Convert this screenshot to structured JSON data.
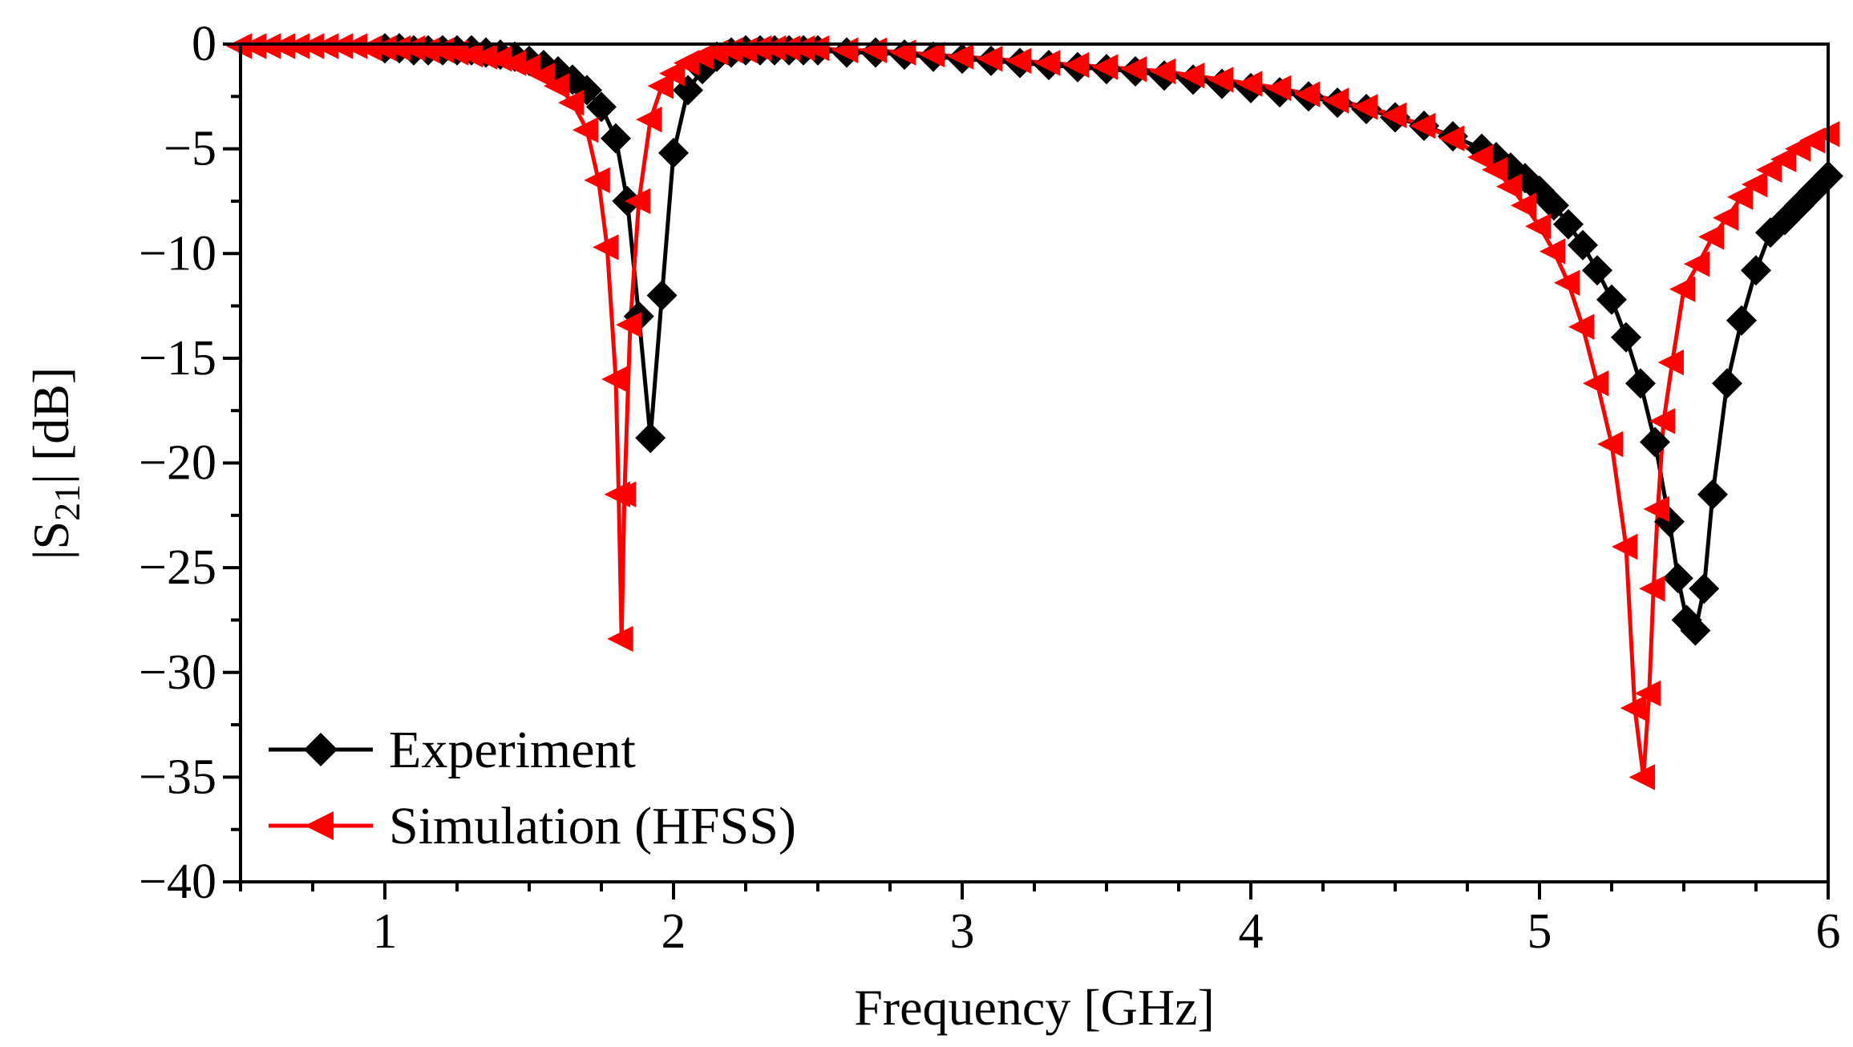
{
  "chart_data": {
    "type": "line",
    "title": "",
    "xlabel": "Frequency [GHz]",
    "ylabel_parts": {
      "prefix": "|S",
      "subscript": "21",
      "suffix": "| [dB]"
    },
    "xlim": [
      0.5,
      6
    ],
    "ylim": [
      -40,
      0
    ],
    "xticks": [
      1,
      2,
      3,
      4,
      5,
      6
    ],
    "xtick_labels": [
      "1",
      "2",
      "3",
      "4",
      "5",
      "6"
    ],
    "yticks": [
      0,
      -5,
      -10,
      -15,
      -20,
      -25,
      -30,
      -35,
      -40
    ],
    "ytick_labels": [
      "0",
      "−5",
      "−10",
      "−15",
      "−20",
      "−25",
      "−30",
      "−35",
      "−40"
    ],
    "legend_position": "bottom-left",
    "series": [
      {
        "name": "Experiment",
        "color": "#000000",
        "marker": "diamond",
        "x": [
          1.0,
          1.05,
          1.1,
          1.15,
          1.2,
          1.25,
          1.3,
          1.35,
          1.4,
          1.45,
          1.5,
          1.55,
          1.6,
          1.65,
          1.7,
          1.75,
          1.8,
          1.84,
          1.88,
          1.92,
          1.96,
          2.0,
          2.05,
          2.1,
          2.15,
          2.2,
          2.25,
          2.3,
          2.35,
          2.4,
          2.45,
          2.5,
          2.6,
          2.7,
          2.8,
          2.9,
          3.0,
          3.1,
          3.2,
          3.3,
          3.4,
          3.5,
          3.6,
          3.7,
          3.8,
          3.9,
          4.0,
          4.1,
          4.2,
          4.3,
          4.4,
          4.5,
          4.6,
          4.7,
          4.8,
          4.85,
          4.9,
          4.95,
          5.0,
          5.05,
          5.1,
          5.15,
          5.2,
          5.25,
          5.3,
          5.35,
          5.4,
          5.45,
          5.48,
          5.51,
          5.54,
          5.57,
          5.6,
          5.65,
          5.7,
          5.75,
          5.8,
          5.85,
          5.9,
          5.95,
          6.0
        ],
        "y": [
          -0.2,
          -0.2,
          -0.3,
          -0.3,
          -0.3,
          -0.3,
          -0.3,
          -0.4,
          -0.5,
          -0.6,
          -0.8,
          -1.0,
          -1.3,
          -1.7,
          -2.2,
          -3.0,
          -4.5,
          -7.5,
          -13.0,
          -18.8,
          -12.0,
          -5.2,
          -2.2,
          -1.2,
          -0.6,
          -0.4,
          -0.3,
          -0.3,
          -0.3,
          -0.3,
          -0.3,
          -0.3,
          -0.4,
          -0.4,
          -0.5,
          -0.6,
          -0.7,
          -0.8,
          -0.9,
          -1.0,
          -1.1,
          -1.2,
          -1.3,
          -1.5,
          -1.7,
          -1.9,
          -2.1,
          -2.3,
          -2.5,
          -2.8,
          -3.1,
          -3.5,
          -3.9,
          -4.4,
          -5.0,
          -5.4,
          -5.9,
          -6.4,
          -7.0,
          -7.7,
          -8.6,
          -9.6,
          -10.8,
          -12.2,
          -14.0,
          -16.2,
          -19.0,
          -22.8,
          -25.5,
          -27.5,
          -28.0,
          -26.0,
          -21.5,
          -16.2,
          -13.2,
          -10.8,
          -9.0,
          -8.4,
          -7.7,
          -7.0,
          -6.3
        ]
      },
      {
        "name": "Simulation (HFSS)",
        "color": "#ff0000",
        "marker": "triangle-left",
        "x": [
          0.5,
          0.55,
          0.6,
          0.65,
          0.7,
          0.75,
          0.8,
          0.85,
          0.9,
          0.95,
          1.0,
          1.05,
          1.1,
          1.15,
          1.2,
          1.25,
          1.3,
          1.35,
          1.4,
          1.45,
          1.5,
          1.55,
          1.6,
          1.65,
          1.7,
          1.74,
          1.77,
          1.8,
          1.81,
          1.82,
          1.83,
          1.85,
          1.88,
          1.92,
          1.96,
          2.0,
          2.05,
          2.1,
          2.15,
          2.2,
          2.25,
          2.3,
          2.35,
          2.4,
          2.45,
          2.5,
          2.6,
          2.7,
          2.8,
          2.9,
          3.0,
          3.1,
          3.2,
          3.3,
          3.4,
          3.5,
          3.6,
          3.7,
          3.8,
          3.9,
          4.0,
          4.1,
          4.2,
          4.3,
          4.4,
          4.5,
          4.6,
          4.7,
          4.8,
          4.85,
          4.9,
          4.95,
          5.0,
          5.05,
          5.1,
          5.15,
          5.2,
          5.25,
          5.3,
          5.33,
          5.36,
          5.38,
          5.395,
          5.41,
          5.43,
          5.46,
          5.5,
          5.55,
          5.6,
          5.65,
          5.7,
          5.75,
          5.8,
          5.85,
          5.9,
          5.95,
          6.0
        ],
        "y": [
          -0.1,
          -0.1,
          -0.1,
          -0.1,
          -0.1,
          -0.1,
          -0.1,
          -0.1,
          -0.1,
          -0.2,
          -0.2,
          -0.2,
          -0.2,
          -0.3,
          -0.3,
          -0.4,
          -0.5,
          -0.6,
          -0.7,
          -0.9,
          -1.1,
          -1.5,
          -2.0,
          -2.8,
          -4.1,
          -6.5,
          -9.7,
          -16.0,
          -21.5,
          -28.4,
          -21.5,
          -13.4,
          -7.5,
          -3.6,
          -2.0,
          -1.4,
          -0.9,
          -0.6,
          -0.4,
          -0.3,
          -0.3,
          -0.2,
          -0.2,
          -0.2,
          -0.2,
          -0.2,
          -0.3,
          -0.3,
          -0.4,
          -0.5,
          -0.6,
          -0.7,
          -0.8,
          -0.9,
          -1.0,
          -1.1,
          -1.2,
          -1.3,
          -1.5,
          -1.7,
          -1.9,
          -2.1,
          -2.4,
          -2.7,
          -3.0,
          -3.4,
          -3.9,
          -4.5,
          -5.4,
          -6.0,
          -6.8,
          -7.7,
          -8.7,
          -9.9,
          -11.4,
          -13.5,
          -16.2,
          -19.1,
          -24.0,
          -31.7,
          -35.0,
          -31.0,
          -26.0,
          -22.2,
          -18.0,
          -15.2,
          -11.7,
          -10.5,
          -9.2,
          -8.3,
          -7.3,
          -6.7,
          -6.0,
          -5.5,
          -5.0,
          -4.6,
          -4.3
        ]
      }
    ]
  }
}
